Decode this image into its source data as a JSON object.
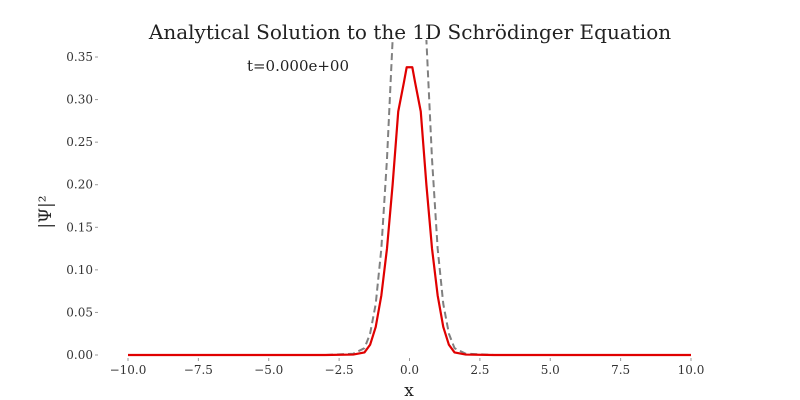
{
  "chart_data": {
    "type": "line",
    "title": "Analytical Solution to the 1D Schrödinger Equation",
    "annotation": "t=0.000e+00",
    "xlabel": "x",
    "ylabel": "|Ψ|²",
    "xlim": [
      -10.0,
      10.0
    ],
    "ylim": [
      0.0,
      0.37
    ],
    "grid": false,
    "xticks": [
      -10.0,
      -7.5,
      -5.0,
      -2.5,
      0.0,
      2.5,
      5.0,
      7.5,
      10.0
    ],
    "xtick_labels": [
      "−10.0",
      "−7.5",
      "−5.0",
      "−2.5",
      "0.0",
      "2.5",
      "5.0",
      "7.5",
      "10.0"
    ],
    "yticks": [
      0.0,
      0.05,
      0.1,
      0.15,
      0.2,
      0.25,
      0.3,
      0.35
    ],
    "ytick_labels": [
      "0.00",
      "0.05",
      "0.10",
      "0.15",
      "0.20",
      "0.25",
      "0.30",
      "0.35"
    ],
    "series": [
      {
        "key": "psi_sq",
        "color": "#e00000",
        "style": "solid",
        "x": [
          -10.0,
          -3.0,
          -2.0,
          -1.6,
          -1.4,
          -1.2,
          -1.0,
          -0.8,
          -0.6,
          -0.4,
          -0.2,
          -0.1,
          0.1,
          0.2,
          0.4,
          0.6,
          0.8,
          1.0,
          1.2,
          1.4,
          1.6,
          2.0,
          3.0,
          10.0
        ],
        "y": [
          0.0,
          0.0,
          0.0005,
          0.003,
          0.012,
          0.033,
          0.07,
          0.125,
          0.2,
          0.286,
          0.32,
          0.338,
          0.338,
          0.32,
          0.286,
          0.2,
          0.125,
          0.07,
          0.033,
          0.012,
          0.003,
          0.0005,
          0.0,
          0.0
        ]
      },
      {
        "key": "envelope",
        "color": "#808080",
        "style": "dashed",
        "x": [
          -10.0,
          -3.0,
          -2.0,
          -1.6,
          -1.4,
          -1.2,
          -1.0,
          -0.8,
          -0.6,
          -0.5,
          0.5,
          0.6,
          0.8,
          1.0,
          1.2,
          1.4,
          1.6,
          2.0,
          3.0,
          10.0
        ],
        "y": [
          0.0,
          0.0,
          0.0015,
          0.008,
          0.025,
          0.06,
          0.125,
          0.23,
          0.37,
          0.44,
          0.44,
          0.37,
          0.23,
          0.125,
          0.06,
          0.025,
          0.008,
          0.0015,
          0.0,
          0.0
        ]
      }
    ]
  }
}
